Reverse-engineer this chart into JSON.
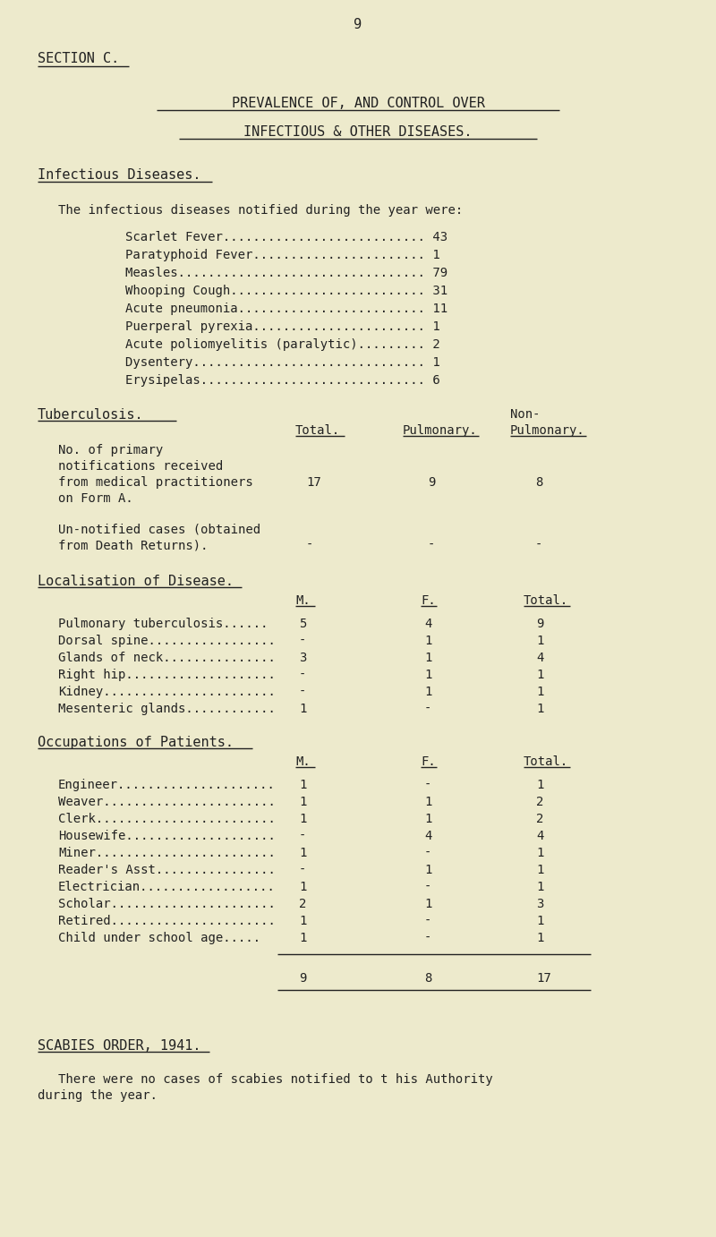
{
  "bg_color": "#edeacc",
  "text_color": "#222222",
  "page_number": "9",
  "section": "SECTION C.",
  "title1": "PREVALENCE OF, AND CONTROL OVER",
  "title2": "INFECTIOUS & OTHER DISEASES.",
  "infectious_header": "Infectious Diseases.",
  "infectious_intro": "The infectious diseases notified during the year were:",
  "infectious_diseases": [
    [
      "Scarlet Fever",
      "43"
    ],
    [
      "Paratyphoid Fever",
      "1"
    ],
    [
      "Measles",
      "79"
    ],
    [
      "Whooping Cough",
      "31"
    ],
    [
      "Acute pneumonia",
      "11"
    ],
    [
      "Puerperal pyrexia",
      "1"
    ],
    [
      "Acute poliomyelitis (paralytic)",
      "2"
    ],
    [
      "Dysentery",
      "1"
    ],
    [
      "Erysipelas",
      "6"
    ]
  ],
  "tb_header": "Tuberculosis.",
  "tb_notification_label": [
    "No. of primary",
    "notifications received",
    "from medical practitioners",
    "on Form A."
  ],
  "tb_notification_values": [
    "17",
    "9",
    "8"
  ],
  "tb_unnotified_label": [
    "Un-notified cases (obtained",
    "from Death Returns)."
  ],
  "tb_unnotified_values": [
    "-",
    "-",
    "-"
  ],
  "localisation_header": "Localisation of Disease.",
  "localisation_col_headers": [
    "M.",
    "F.",
    "Total."
  ],
  "localisation_rows": [
    [
      "Pulmonary tuberculosis......",
      "5",
      "4",
      "9"
    ],
    [
      "Dorsal spine.................",
      "-",
      "1",
      "1"
    ],
    [
      "Glands of neck...............",
      "3",
      "1",
      "4"
    ],
    [
      "Right hip....................",
      "-",
      "1",
      "1"
    ],
    [
      "Kidney.......................",
      "-",
      "1",
      "1"
    ],
    [
      "Mesenteric glands............",
      "1",
      "-",
      "1"
    ]
  ],
  "occupations_header": "Occupations of Patients.",
  "occupations_col_headers": [
    "M.",
    "F.",
    "Total."
  ],
  "occupations_rows": [
    [
      "Engineer.....................",
      "1",
      "-",
      "1"
    ],
    [
      "Weaver.......................",
      "1",
      "1",
      "2"
    ],
    [
      "Clerk........................",
      "1",
      "1",
      "2"
    ],
    [
      "Housewife....................",
      "-",
      "4",
      "4"
    ],
    [
      "Miner........................",
      "1",
      "-",
      "1"
    ],
    [
      "Reader's Asst................",
      "-",
      "1",
      "1"
    ],
    [
      "Electrician..................",
      "1",
      "-",
      "1"
    ],
    [
      "Scholar......................",
      "2",
      "1",
      "3"
    ],
    [
      "Retired......................",
      "1",
      "-",
      "1"
    ],
    [
      "Child under school age.....",
      "1",
      "-",
      "1"
    ]
  ],
  "occupations_totals": [
    "9",
    "8",
    "17"
  ],
  "scabies_header": "SCABIES ORDER, 1941.",
  "scabies_text1": "There were no cases of scabies notified to t his Authority",
  "scabies_text2": "during the year."
}
